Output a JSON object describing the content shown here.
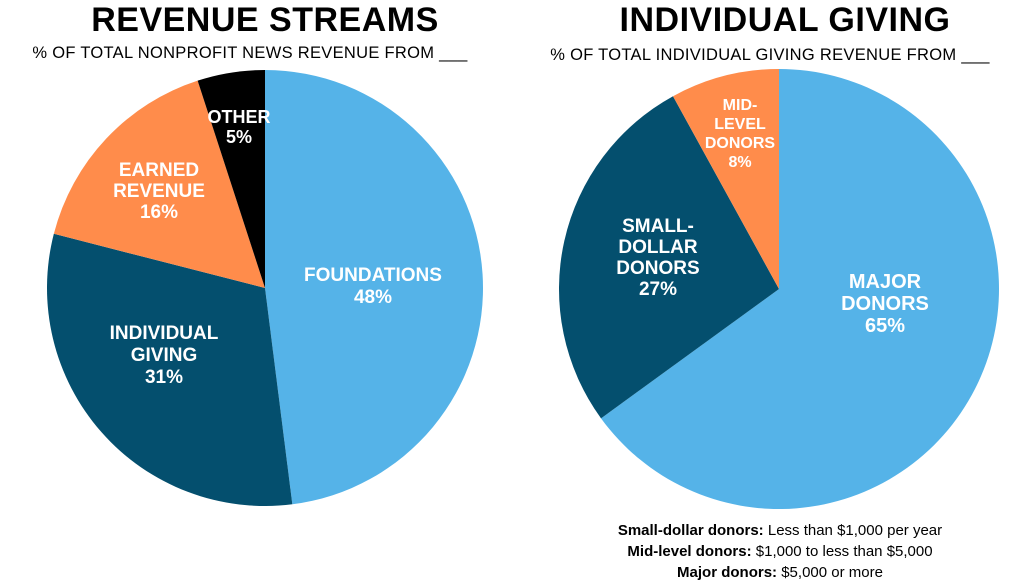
{
  "chart_data": [
    {
      "type": "pie",
      "title": "REVENUE STREAMS",
      "subtitle": "% OF TOTAL NONPROFIT NEWS REVENUE FROM ___",
      "categories": [
        "FOUNDATIONS",
        "INDIVIDUAL GIVING",
        "EARNED REVENUE",
        "OTHER"
      ],
      "values": [
        48,
        31,
        16,
        5
      ],
      "value_labels": [
        "48%",
        "31%",
        "16%",
        "5%"
      ],
      "colors": [
        "#55B3E8",
        "#044F6E",
        "#FF8C4B",
        "#000000"
      ]
    },
    {
      "type": "pie",
      "title": "INDIVIDUAL GIVING",
      "subtitle": "% OF TOTAL INDIVIDUAL GIVING REVENUE FROM ___",
      "categories": [
        "MAJOR DONORS",
        "SMALL-DOLLAR DONORS",
        "MID-LEVEL DONORS"
      ],
      "values": [
        65,
        27,
        8
      ],
      "value_labels": [
        "65%",
        "27%",
        "8%"
      ],
      "colors": [
        "#55B3E8",
        "#044F6E",
        "#FF8C4B"
      ]
    }
  ],
  "footnotes": [
    {
      "term": "Small-dollar donors:",
      "desc": " Less than $1,000 per year"
    },
    {
      "term": "Mid-level donors:",
      "desc": " $1,000 to less than $5,000"
    },
    {
      "term": "Major donors:",
      "desc": " $5,000 or more"
    }
  ]
}
